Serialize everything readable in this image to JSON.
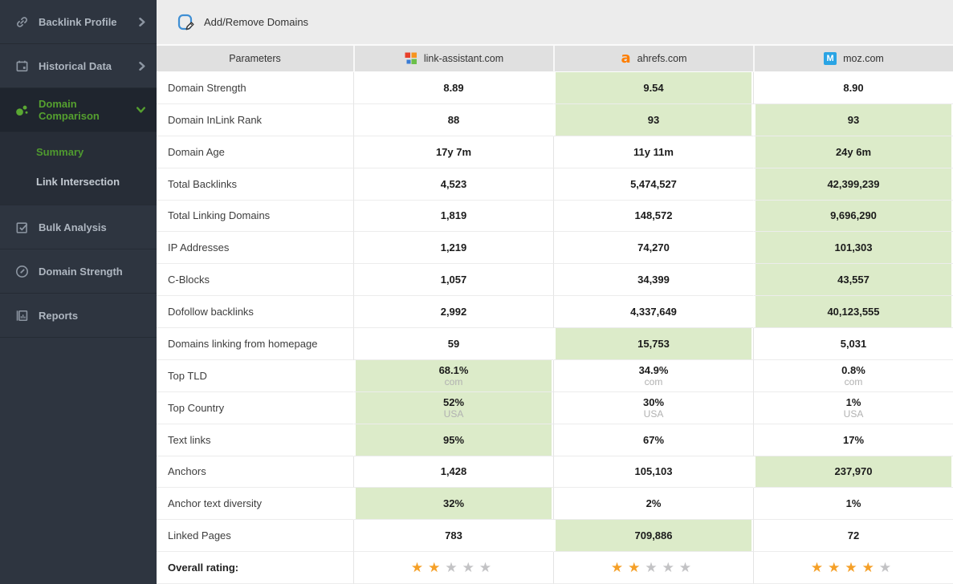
{
  "sidebar": {
    "items": [
      {
        "label": "Backlink Profile",
        "icon": "link",
        "chevron": "right"
      },
      {
        "label": "Historical Data",
        "icon": "calendar",
        "chevron": "right"
      },
      {
        "label": "Domain Comparison",
        "icon": "bubbles",
        "chevron": "down",
        "active": true,
        "children": [
          {
            "label": "Summary",
            "active": true
          },
          {
            "label": "Link Intersection"
          }
        ]
      },
      {
        "label": "Bulk Analysis",
        "icon": "checklist"
      },
      {
        "label": "Domain Strength",
        "icon": "gauge"
      },
      {
        "label": "Reports",
        "icon": "report"
      }
    ]
  },
  "toolbar": {
    "add_remove_label": "Add/Remove Domains"
  },
  "table": {
    "param_header": "Parameters",
    "domains": [
      {
        "name": "link-assistant.com",
        "icon": "squares"
      },
      {
        "name": "ahrefs.com",
        "icon": "letter",
        "letter": "a",
        "color": "#ff7e00"
      },
      {
        "name": "moz.com",
        "icon": "badge",
        "letter": "M",
        "bg": "#2aa4e4"
      }
    ],
    "rows": [
      {
        "param": "Domain Strength",
        "values": [
          "8.89",
          "9.54",
          "8.90"
        ],
        "hl": [
          false,
          true,
          false
        ]
      },
      {
        "param": "Domain InLink Rank",
        "values": [
          "88",
          "93",
          "93"
        ],
        "hl": [
          false,
          true,
          true
        ]
      },
      {
        "param": "Domain Age",
        "values": [
          "17y 7m",
          "11y 11m",
          "24y 6m"
        ],
        "hl": [
          false,
          false,
          true
        ]
      },
      {
        "param": "Total Backlinks",
        "values": [
          "4,523",
          "5,474,527",
          "42,399,239"
        ],
        "hl": [
          false,
          false,
          true
        ]
      },
      {
        "param": "Total Linking Domains",
        "values": [
          "1,819",
          "148,572",
          "9,696,290"
        ],
        "hl": [
          false,
          false,
          true
        ]
      },
      {
        "param": "IP Addresses",
        "values": [
          "1,219",
          "74,270",
          "101,303"
        ],
        "hl": [
          false,
          false,
          true
        ]
      },
      {
        "param": "C-Blocks",
        "values": [
          "1,057",
          "34,399",
          "43,557"
        ],
        "hl": [
          false,
          false,
          true
        ]
      },
      {
        "param": "Dofollow backlinks",
        "values": [
          "2,992",
          "4,337,649",
          "40,123,555"
        ],
        "hl": [
          false,
          false,
          true
        ]
      },
      {
        "param": "Domains linking from homepage",
        "values": [
          "59",
          "15,753",
          "5,031"
        ],
        "hl": [
          false,
          true,
          false
        ]
      },
      {
        "param": "Top TLD",
        "values": [
          "68.1%",
          "34.9%",
          "0.8%"
        ],
        "subs": [
          "com",
          "com",
          "com"
        ],
        "hl": [
          true,
          false,
          false
        ]
      },
      {
        "param": "Top Country",
        "values": [
          "52%",
          "30%",
          "1%"
        ],
        "subs": [
          "USA",
          "USA",
          "USA"
        ],
        "hl": [
          true,
          false,
          false
        ]
      },
      {
        "param": "Text links",
        "values": [
          "95%",
          "67%",
          "17%"
        ],
        "hl": [
          true,
          false,
          false
        ]
      },
      {
        "param": "Anchors",
        "values": [
          "1,428",
          "105,103",
          "237,970"
        ],
        "hl": [
          false,
          false,
          true
        ]
      },
      {
        "param": "Anchor text diversity",
        "values": [
          "32%",
          "2%",
          "1%"
        ],
        "hl": [
          true,
          false,
          false
        ]
      },
      {
        "param": "Linked Pages",
        "values": [
          "783",
          "709,886",
          "72"
        ],
        "hl": [
          false,
          true,
          false
        ]
      }
    ],
    "overall": {
      "label": "Overall rating:",
      "stars": [
        2,
        2,
        4
      ],
      "max_stars": 5
    }
  },
  "colors": {
    "accent_green": "#55a02f",
    "highlight_cell": "#dcebc9",
    "star_on": "#f5a028",
    "star_off": "#c3c3c5",
    "sidebar_bg": "#2e3540",
    "favicon_squares": [
      "#e8402a",
      "#f7941e",
      "#6cc04a",
      "#3a7bd5"
    ]
  }
}
